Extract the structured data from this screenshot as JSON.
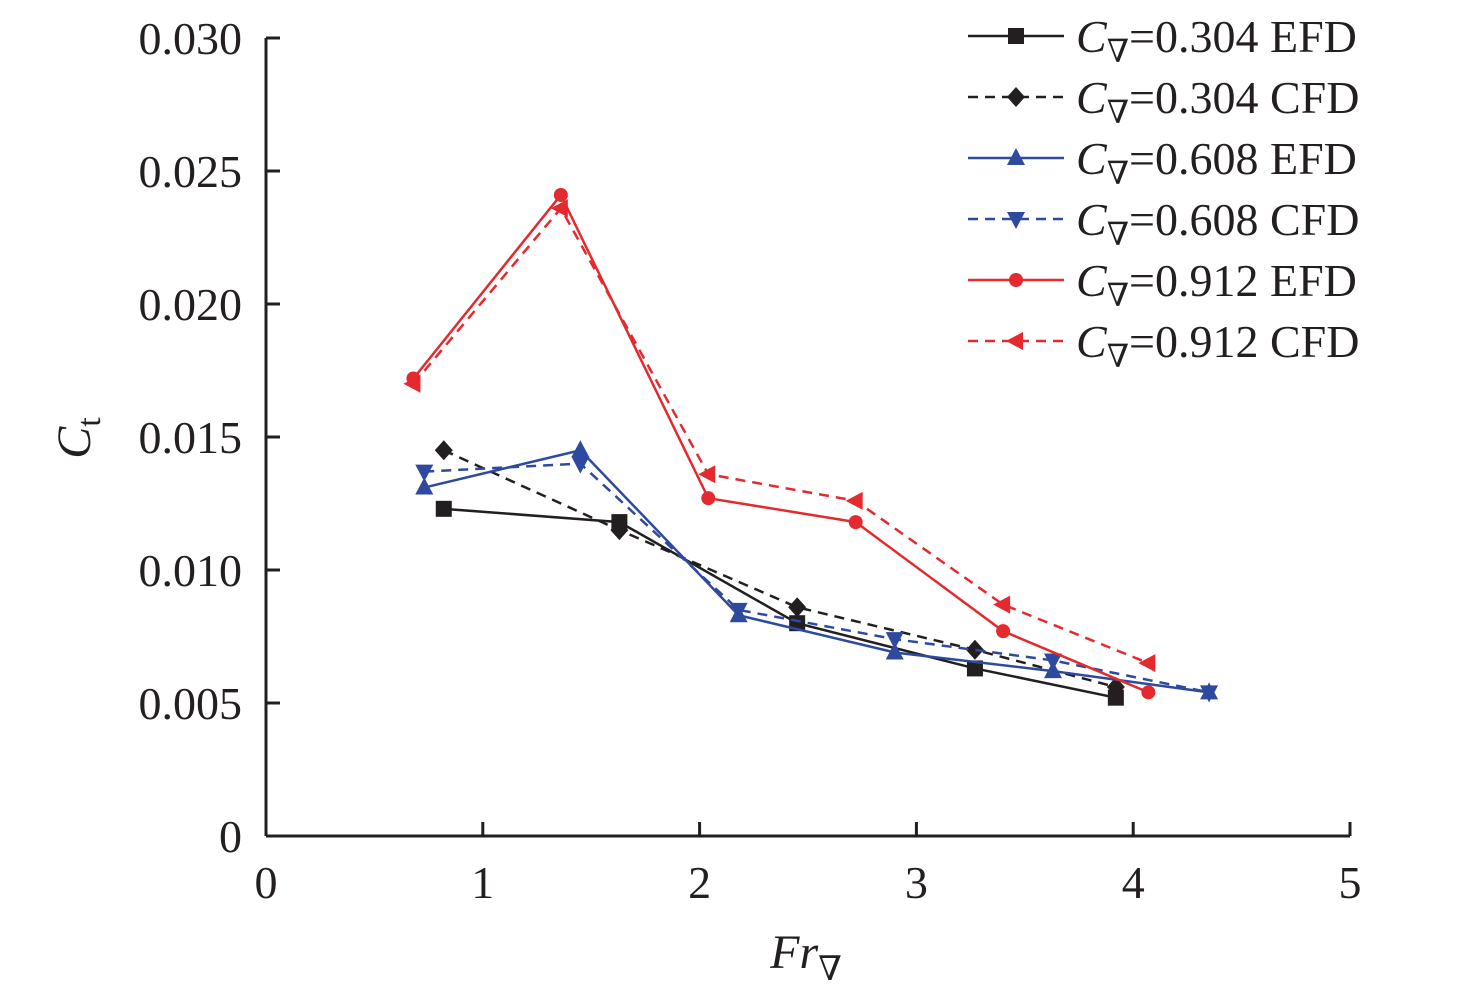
{
  "chart_data": {
    "type": "line",
    "xlabel": "Fr",
    "xlabel_sub": "∇",
    "ylabel": "C",
    "ylabel_sub": "t",
    "xlim": [
      0,
      5
    ],
    "ylim": [
      0,
      0.03
    ],
    "xticks": [
      "0",
      "1",
      "2",
      "3",
      "4",
      "5"
    ],
    "yticks": [
      "0",
      "0.005",
      "0.010",
      "0.015",
      "0.020",
      "0.025",
      "0.030"
    ],
    "grid": false,
    "legend_position": "top-right",
    "series": [
      {
        "name": "C∇=0.304 EFD",
        "label_var": "C",
        "label_sub": "∇",
        "label_rest": "=0.304 EFD",
        "color": "#231f20",
        "dashed": false,
        "marker": "square",
        "x": [
          0.82,
          1.63,
          2.45,
          3.27,
          3.92
        ],
        "y": [
          0.0123,
          0.0118,
          0.008,
          0.0063,
          0.0052
        ]
      },
      {
        "name": "C∇=0.304 CFD",
        "label_var": "C",
        "label_sub": "∇",
        "label_rest": "=0.304 CFD",
        "color": "#231f20",
        "dashed": true,
        "marker": "diamond",
        "x": [
          0.82,
          1.63,
          2.45,
          3.27,
          3.92
        ],
        "y": [
          0.0145,
          0.0115,
          0.0086,
          0.007,
          0.0056
        ]
      },
      {
        "name": "C∇=0.608 EFD",
        "label_var": "C",
        "label_sub": "∇",
        "label_rest": "=0.608 EFD",
        "color": "#2e4a9e",
        "dashed": false,
        "marker": "triangle-up",
        "x": [
          0.73,
          1.45,
          2.18,
          2.9,
          3.63,
          4.35
        ],
        "y": [
          0.0131,
          0.0145,
          0.0083,
          0.0069,
          0.0062,
          0.0054
        ]
      },
      {
        "name": "C∇=0.608 CFD",
        "label_var": "C",
        "label_sub": "∇",
        "label_rest": "=0.608 CFD",
        "color": "#2e4a9e",
        "dashed": true,
        "marker": "triangle-down",
        "x": [
          0.73,
          1.45,
          2.18,
          2.9,
          3.63,
          4.35
        ],
        "y": [
          0.0137,
          0.014,
          0.0085,
          0.0074,
          0.0066,
          0.0054
        ]
      },
      {
        "name": "C∇=0.912 EFD",
        "label_var": "C",
        "label_sub": "∇",
        "label_rest": "=0.912 EFD",
        "color": "#e42a2f",
        "dashed": false,
        "marker": "circle",
        "x": [
          0.68,
          1.36,
          2.04,
          2.72,
          3.4,
          4.07
        ],
        "y": [
          0.0172,
          0.0241,
          0.0127,
          0.0118,
          0.0077,
          0.0054
        ]
      },
      {
        "name": "C∇=0.912 CFD",
        "label_var": "C",
        "label_sub": "∇",
        "label_rest": "=0.912 CFD",
        "color": "#e42a2f",
        "dashed": true,
        "marker": "triangle-left",
        "x": [
          0.68,
          1.36,
          2.04,
          2.72,
          3.4,
          4.07
        ],
        "y": [
          0.017,
          0.0236,
          0.0136,
          0.0126,
          0.0087,
          0.0065
        ]
      }
    ]
  }
}
